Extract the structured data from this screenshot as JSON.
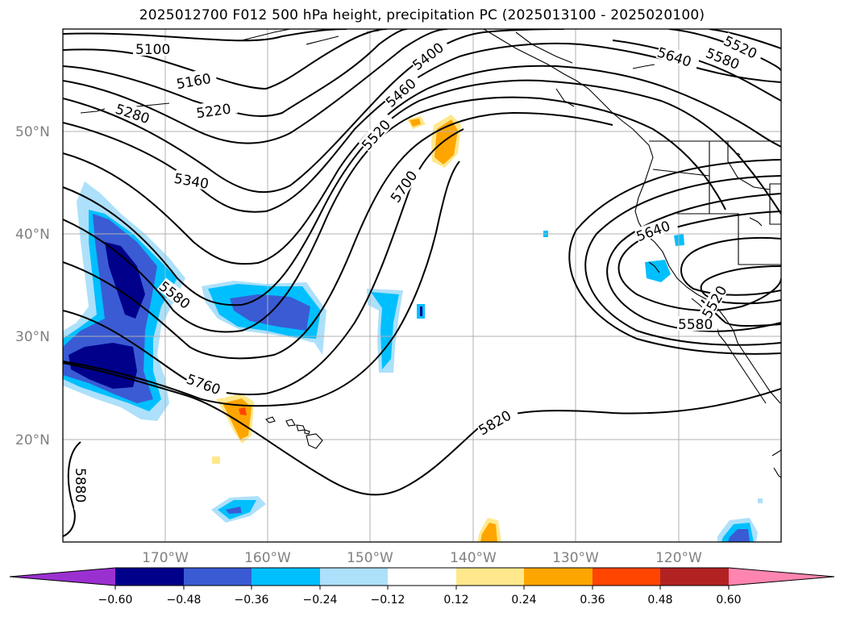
{
  "title": "2025012700 F012 500 hPa height, precipitation PC (2025013100 - 2025020100)",
  "map": {
    "lat_labels": [
      "50°N",
      "40°N",
      "30°N",
      "20°N"
    ],
    "lon_labels": [
      "170°W",
      "160°W",
      "150°W",
      "140°W",
      "130°W",
      "120°W"
    ],
    "contour_labels": [
      "5100",
      "5160",
      "5220",
      "5280",
      "5340",
      "5400",
      "5460",
      "5520",
      "5700",
      "5580",
      "5760",
      "5820",
      "5880",
      "5520",
      "5580",
      "5640",
      "5640",
      "5580",
      "5520"
    ]
  },
  "colorbar": {
    "ticks": [
      "−0.60",
      "−0.48",
      "−0.36",
      "−0.24",
      "−0.12",
      "0.12",
      "0.24",
      "0.36",
      "0.48",
      "0.60"
    ],
    "colors": [
      "#9b30d0",
      "#00008b",
      "#3a5bd4",
      "#00bfff",
      "#ade0fa",
      "#ffffff",
      "#ffe88c",
      "#ffa500",
      "#ff4500",
      "#b22222",
      "#ff85b0"
    ]
  }
}
